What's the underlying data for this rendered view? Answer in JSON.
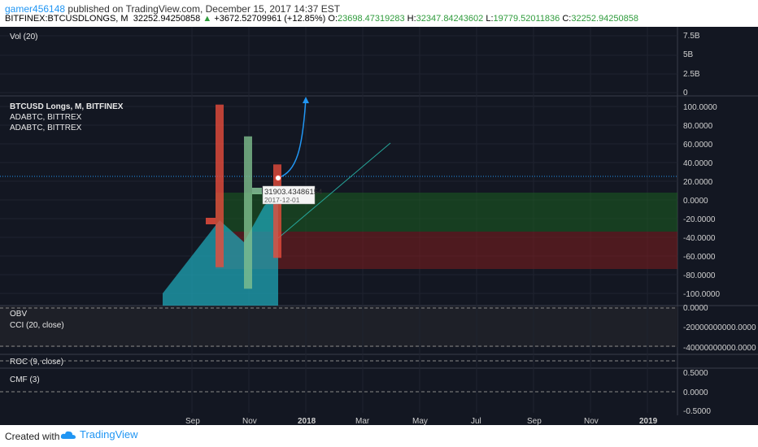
{
  "header": {
    "username": "gamer456148",
    "published_text": "published on TradingView.com, December 15, 2017 14:37 EST",
    "symbol": "BITFINEX:BTCUSDLONGS, M",
    "last": "32252.94250858",
    "change_arrow": "▲",
    "change": "+3672.52709961 (+12.85%)",
    "o_label": "O:",
    "o": "23698.47319283",
    "h_label": "H:",
    "h": "32347.84243602",
    "l_label": "L:",
    "l": "19779.52011836",
    "c_label": "C:",
    "c": "32252.94250858"
  },
  "panes": {
    "vol": {
      "title": "Vol (20)",
      "ticks": [
        "7.5B",
        "5B",
        "2.5B",
        "0"
      ]
    },
    "main": {
      "legend": [
        "BTCUSD Longs, M, BITFINEX",
        "ADABTC, BITTREX",
        "ADABTC, BITTREX"
      ],
      "ticks": [
        "100.0000",
        "80.0000",
        "60.0000",
        "40.0000",
        "20.0000",
        "0.0000",
        "-20.0000",
        "-40.0000",
        "-60.0000",
        "-80.0000",
        "-100.0000"
      ],
      "tooltip_value": "31903.43486154",
      "tooltip_date": "2017-12-01"
    },
    "obv": {
      "title": "OBV",
      "subtitle": "CCI (20, close)",
      "ticks": [
        "0.0000",
        "-20000000000.0000",
        "-40000000000.0000"
      ]
    },
    "roc": {
      "title": "ROC (9, close)"
    },
    "cmf": {
      "title": "CMF (3)",
      "ticks": [
        "0.5000",
        "0.0000",
        "-0.5000"
      ]
    }
  },
  "time_axis": [
    "Sep",
    "Nov",
    "2018",
    "Mar",
    "May",
    "Jul",
    "Sep",
    "Nov",
    "2019"
  ],
  "footer": {
    "created_with": "Created with",
    "brand": "TradingView"
  },
  "colors": {
    "background": "#131722",
    "up": "#2e9b3b",
    "down": "#e74c3c",
    "accent": "#2196f3"
  },
  "chart_data": {
    "type": "candlestick",
    "ylim": [
      -100,
      100
    ],
    "candles": [
      {
        "date": "2017-08",
        "open": -20,
        "high": 102,
        "low": -72,
        "close": -22,
        "color": "down"
      },
      {
        "date": "2017-10",
        "open": -40,
        "high": 68,
        "low": -95,
        "close": 12,
        "color": "up"
      },
      {
        "date": "2017-12",
        "open": 35,
        "high": 38,
        "low": -62,
        "close": 20,
        "color": "down"
      }
    ],
    "zones": [
      {
        "name": "profit-zone",
        "from": -30,
        "to": 8,
        "color": "green"
      },
      {
        "name": "loss-zone",
        "from": -72,
        "to": -30,
        "color": "red"
      }
    ]
  }
}
